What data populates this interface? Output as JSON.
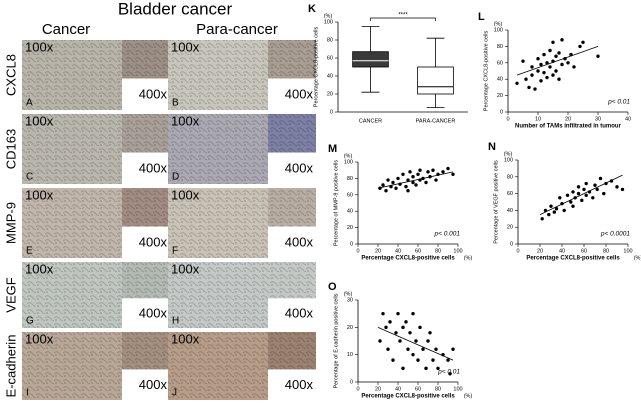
{
  "micrographs": {
    "title": "Bladder cancer",
    "columns": [
      "Cancer",
      "Para-cancer"
    ],
    "rows": [
      {
        "label": "CXCL8",
        "panels": [
          {
            "letter": "A",
            "low": "100x",
            "high": "400x"
          },
          {
            "letter": "B",
            "low": "100x",
            "high": "400x"
          }
        ]
      },
      {
        "label": "CD163",
        "panels": [
          {
            "letter": "C",
            "low": "100x",
            "high": "400x"
          },
          {
            "letter": "D",
            "low": "100x",
            "high": "400x"
          }
        ]
      },
      {
        "label": "MMP-9",
        "panels": [
          {
            "letter": "E",
            "low": "100x",
            "high": "400x"
          },
          {
            "letter": "F",
            "low": "100x",
            "high": "400x"
          }
        ]
      },
      {
        "label": "VEGF",
        "panels": [
          {
            "letter": "G",
            "low": "100x",
            "high": "400x"
          },
          {
            "letter": "H",
            "low": "100x",
            "high": "400x"
          }
        ]
      },
      {
        "label": "E-cadherin",
        "panels": [
          {
            "letter": "I",
            "low": "100x",
            "high": "400x"
          },
          {
            "letter": "J",
            "low": "100x",
            "high": "400x"
          }
        ]
      }
    ]
  },
  "chart_data": [
    {
      "type": "box",
      "panel": "K",
      "y_label": "Percentage CXCL8-positive cells",
      "y_unit": "(%)",
      "categories": [
        "CANCER",
        "PARA-CANCER"
      ],
      "boxes": [
        {
          "min": 22,
          "q1": 50,
          "median": 57,
          "q3": 67,
          "max": 95
        },
        {
          "min": 5,
          "q1": 20,
          "median": 28,
          "q3": 50,
          "max": 82
        }
      ],
      "colors": [
        "#3a3a3a",
        "#ffffff"
      ],
      "ylim": [
        0,
        100
      ],
      "yticks": [
        0,
        20,
        40,
        60,
        80,
        100
      ],
      "annotation": "****"
    },
    {
      "type": "scatter",
      "panel": "L",
      "y_label": "Percentage CXCL8-positive cells",
      "y_unit": "(%)",
      "x_label": "Number of TAMs infiltrated in tumour",
      "x": [
        3,
        5,
        6,
        7,
        8,
        8,
        9,
        10,
        10,
        11,
        11,
        12,
        12,
        13,
        13,
        14,
        14,
        15,
        15,
        15,
        16,
        16,
        17,
        17,
        18,
        18,
        19,
        20,
        21,
        22,
        24,
        25,
        30
      ],
      "y": [
        35,
        62,
        40,
        30,
        45,
        55,
        28,
        50,
        65,
        38,
        58,
        48,
        70,
        42,
        60,
        55,
        75,
        45,
        62,
        85,
        50,
        68,
        40,
        72,
        58,
        88,
        65,
        60,
        70,
        55,
        80,
        85,
        68
      ],
      "trendline": {
        "x": [
          3,
          30
        ],
        "y": [
          45,
          80
        ]
      },
      "xlim": [
        0,
        40
      ],
      "xticks": [
        0,
        10,
        20,
        30,
        40
      ],
      "ylim": [
        0,
        100
      ],
      "yticks": [
        0,
        20,
        40,
        60,
        80,
        100
      ],
      "annotation": "p< 0.01",
      "color": "#000000"
    },
    {
      "type": "scatter",
      "panel": "M",
      "y_label": "Percentage of MMP-9 positive cells",
      "y_unit": "(%)",
      "x_label": "Percentage CXCL8-positive cells",
      "x_unit": "(%)",
      "x": [
        22,
        25,
        28,
        30,
        33,
        35,
        38,
        40,
        42,
        45,
        48,
        50,
        50,
        52,
        55,
        55,
        58,
        60,
        62,
        62,
        65,
        68,
        70,
        72,
        75,
        78,
        80,
        85,
        90,
        95
      ],
      "y": [
        68,
        72,
        65,
        78,
        70,
        75,
        68,
        80,
        73,
        85,
        70,
        78,
        65,
        88,
        75,
        82,
        72,
        85,
        78,
        90,
        80,
        75,
        88,
        82,
        90,
        78,
        85,
        88,
        92,
        85
      ],
      "trendline": {
        "x": [
          20,
          95
        ],
        "y": [
          68,
          88
        ]
      },
      "xlim": [
        0,
        100
      ],
      "xticks": [
        0,
        20,
        40,
        60,
        80,
        100
      ],
      "ylim": [
        0,
        100
      ],
      "yticks": [
        0,
        20,
        40,
        60,
        80,
        100
      ],
      "annotation": "p< 0.001",
      "color": "#000000"
    },
    {
      "type": "scatter",
      "panel": "N",
      "y_label": "Percentage of VEGF positive cells",
      "y_unit": "(%)",
      "x_label": "Percentage CXCL8-positive cells",
      "x_unit": "(%)",
      "x": [
        22,
        25,
        28,
        30,
        33,
        35,
        38,
        40,
        42,
        45,
        48,
        50,
        50,
        52,
        55,
        55,
        58,
        60,
        62,
        62,
        65,
        68,
        70,
        72,
        75,
        78,
        80,
        85,
        90,
        95
      ],
      "y": [
        30,
        40,
        35,
        45,
        38,
        42,
        55,
        48,
        40,
        58,
        50,
        62,
        45,
        55,
        60,
        68,
        52,
        65,
        58,
        72,
        62,
        55,
        70,
        65,
        78,
        60,
        72,
        75,
        68,
        65
      ],
      "trendline": {
        "x": [
          20,
          95
        ],
        "y": [
          35,
          82
        ]
      },
      "xlim": [
        0,
        100
      ],
      "xticks": [
        0,
        20,
        40,
        60,
        80,
        100
      ],
      "ylim": [
        0,
        100
      ],
      "yticks": [
        0,
        20,
        40,
        60,
        80,
        100
      ],
      "annotation": "p< 0.0001",
      "color": "#000000"
    },
    {
      "type": "scatter",
      "panel": "O",
      "y_label": "Percentage of E-cadherin positive cells",
      "y_unit": "(%)",
      "x_label": "Percentage CXCL8-positive cells",
      "x_unit": "(%)",
      "x": [
        22,
        25,
        28,
        30,
        32,
        35,
        38,
        40,
        42,
        45,
        45,
        48,
        50,
        52,
        55,
        55,
        58,
        60,
        62,
        65,
        68,
        70,
        72,
        75,
        78,
        80,
        85,
        90,
        92,
        95
      ],
      "y": [
        15,
        25,
        20,
        12,
        22,
        8,
        18,
        25,
        15,
        20,
        5,
        22,
        12,
        18,
        10,
        25,
        15,
        8,
        20,
        12,
        5,
        15,
        18,
        8,
        12,
        5,
        10,
        8,
        3,
        12
      ],
      "trendline": {
        "x": [
          20,
          95
        ],
        "y": [
          20,
          8
        ]
      },
      "xlim": [
        0,
        100
      ],
      "xticks": [
        0,
        20,
        40,
        60,
        80,
        100
      ],
      "ylim": [
        0,
        30
      ],
      "yticks": [
        0,
        10,
        20,
        30
      ],
      "annotation": "p< 0.01",
      "color": "#000000"
    }
  ]
}
